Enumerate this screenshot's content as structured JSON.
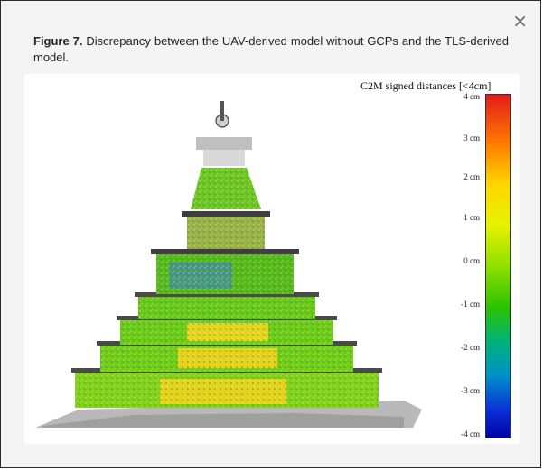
{
  "dialog": {
    "close_glyph": "×",
    "close_icon": "close-icon"
  },
  "caption": {
    "figure_label": "Figure 7.",
    "text": " Discrepancy between the UAV-derived model without GCPs and the TLS-derived model."
  },
  "figure": {
    "subject": "stupa point cloud (C2M distance map)",
    "colorbar": {
      "title": "C2M signed distances [<4cm]",
      "ticks": [
        "4 cm",
        "3 cm",
        "2 cm",
        "1 cm",
        "0 cm",
        "-1 cm",
        "-2 cm",
        "-3 cm",
        "-4 cm"
      ],
      "colors": [
        "#e41a1a",
        "#ff7a00",
        "#ffd600",
        "#8fe000",
        "#2cc200",
        "#0090c8",
        "#0000a8"
      ]
    }
  }
}
